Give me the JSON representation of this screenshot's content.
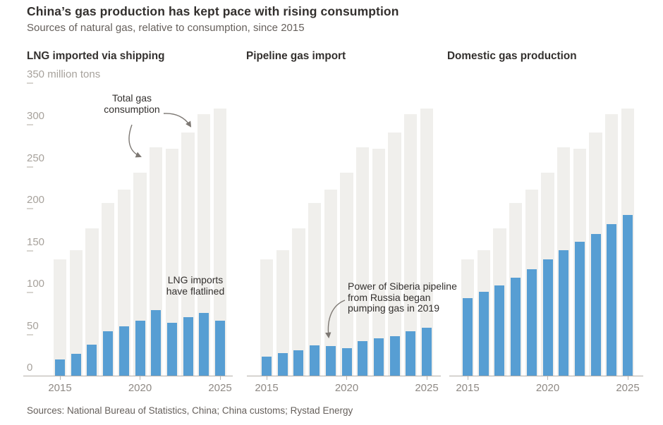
{
  "header": {
    "title": "China’s gas production has kept pace with rising consumption",
    "subtitle": "Sources of natural gas, relative to consumption, since 2015"
  },
  "source": "Sources: National Bureau of Statistics, China; China customs; Rystad Energy",
  "colors": {
    "consumption_bar": "#f0efec",
    "series_bar": "#579ed3",
    "title_text": "#33302e",
    "muted_text": "#66605c",
    "axis_label_text": "#a7a29c",
    "x_label_text": "#8f8a85",
    "axis_line": "#b3aea8",
    "annotation_arrow": "#7d7873"
  },
  "y_axis": {
    "unit_label": " million tons",
    "ticks": [
      0,
      50,
      100,
      150,
      200,
      250,
      300,
      350
    ],
    "max": 350
  },
  "x_axis": {
    "tick_years": [
      "2015",
      "2020",
      "2025"
    ],
    "tick_indices": [
      0,
      5,
      10
    ]
  },
  "chart_data": [
    {
      "type": "bar",
      "title": "LNG imported via shipping",
      "x": [
        2015,
        2016,
        2017,
        2018,
        2019,
        2020,
        2021,
        2022,
        2023,
        2024,
        2025
      ],
      "ylim": [
        0,
        350
      ],
      "ylabel": "million tons",
      "series": [
        {
          "name": "Total gas consumption",
          "color": "#f0efec",
          "values": [
            139,
            150,
            176,
            206,
            222,
            242,
            273,
            271,
            290,
            312,
            319
          ]
        },
        {
          "name": "LNG imported via shipping",
          "color": "#579ed3",
          "values": [
            19,
            26,
            37,
            53,
            59,
            66,
            78,
            63,
            70,
            75,
            66
          ]
        }
      ],
      "annotations": [
        {
          "text": "Total gas\nconsumption"
        },
        {
          "text": "LNG imports\nhave flatlined"
        }
      ]
    },
    {
      "type": "bar",
      "title": "Pipeline gas import",
      "x": [
        2015,
        2016,
        2017,
        2018,
        2019,
        2020,
        2021,
        2022,
        2023,
        2024,
        2025
      ],
      "ylim": [
        0,
        350
      ],
      "series": [
        {
          "name": "Total gas consumption",
          "color": "#f0efec",
          "values": [
            139,
            150,
            176,
            206,
            222,
            242,
            273,
            271,
            290,
            312,
            319
          ]
        },
        {
          "name": "Pipeline gas import",
          "color": "#579ed3",
          "values": [
            23,
            27,
            30,
            36,
            35,
            33,
            41,
            45,
            47,
            53,
            57
          ]
        }
      ],
      "annotations": [
        {
          "text": "Power of Siberia pipeline\nfrom Russia began\npumping gas in 2019"
        }
      ]
    },
    {
      "type": "bar",
      "title": "Domestic gas production",
      "x": [
        2015,
        2016,
        2017,
        2018,
        2019,
        2020,
        2021,
        2022,
        2023,
        2024,
        2025
      ],
      "ylim": [
        0,
        350
      ],
      "series": [
        {
          "name": "Total gas consumption",
          "color": "#f0efec",
          "values": [
            139,
            150,
            176,
            206,
            222,
            242,
            273,
            271,
            290,
            312,
            319
          ]
        },
        {
          "name": "Domestic gas production",
          "color": "#579ed3",
          "values": [
            93,
            100,
            108,
            117,
            127,
            139,
            150,
            160,
            169,
            181,
            192
          ]
        }
      ],
      "annotations": []
    }
  ]
}
